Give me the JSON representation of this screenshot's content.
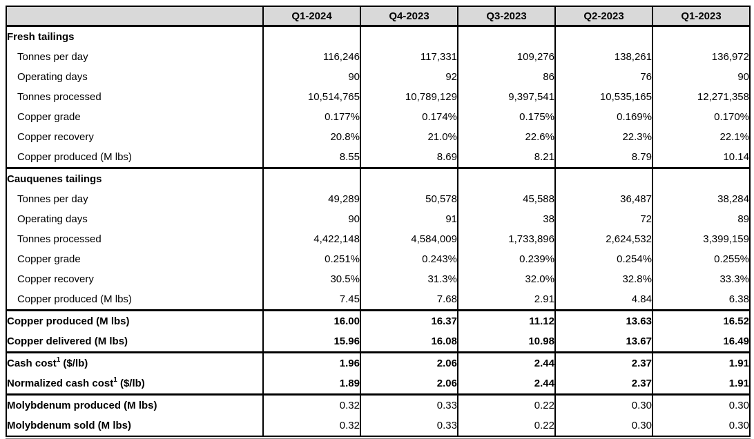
{
  "table": {
    "columns": [
      "",
      "Q1-2024",
      "Q4-2023",
      "Q3-2023",
      "Q2-2023",
      "Q1-2023"
    ],
    "rows": [
      {
        "label": "Fresh tailings",
        "type": "section",
        "group_start": false,
        "values": [
          "",
          "",
          "",
          "",
          ""
        ]
      },
      {
        "label": "Tonnes per day",
        "type": "metric",
        "group_start": false,
        "values": [
          "116,246",
          "117,331",
          "109,276",
          "138,261",
          "136,972"
        ]
      },
      {
        "label": "Operating days",
        "type": "metric",
        "group_start": false,
        "values": [
          "90",
          "92",
          "86",
          "76",
          "90"
        ]
      },
      {
        "label": "Tonnes processed",
        "type": "metric",
        "group_start": false,
        "values": [
          "10,514,765",
          "10,789,129",
          "9,397,541",
          "10,535,165",
          "12,271,358"
        ]
      },
      {
        "label": "Copper grade",
        "type": "metric",
        "group_start": false,
        "values": [
          "0.177%",
          "0.174%",
          "0.175%",
          "0.169%",
          "0.170%"
        ]
      },
      {
        "label": "Copper recovery",
        "type": "metric",
        "group_start": false,
        "values": [
          "20.8%",
          "21.0%",
          "22.6%",
          "22.3%",
          "22.1%"
        ]
      },
      {
        "label": "Copper produced (M lbs)",
        "type": "metric",
        "group_start": false,
        "values": [
          "8.55",
          "8.69",
          "8.21",
          "8.79",
          "10.14"
        ]
      },
      {
        "label": "Cauquenes tailings",
        "type": "section",
        "group_start": true,
        "values": [
          "",
          "",
          "",
          "",
          ""
        ]
      },
      {
        "label": "Tonnes per day",
        "type": "metric",
        "group_start": false,
        "values": [
          "49,289",
          "50,578",
          "45,588",
          "36,487",
          "38,284"
        ]
      },
      {
        "label": "Operating days",
        "type": "metric",
        "group_start": false,
        "values": [
          "90",
          "91",
          "38",
          "72",
          "89"
        ]
      },
      {
        "label": "Tonnes processed",
        "type": "metric",
        "group_start": false,
        "values": [
          "4,422,148",
          "4,584,009",
          "1,733,896",
          "2,624,532",
          "3,399,159"
        ]
      },
      {
        "label": "Copper grade",
        "type": "metric",
        "group_start": false,
        "values": [
          "0.251%",
          "0.243%",
          "0.239%",
          "0.254%",
          "0.255%"
        ]
      },
      {
        "label": "Copper recovery",
        "type": "metric",
        "group_start": false,
        "values": [
          "30.5%",
          "31.3%",
          "32.0%",
          "32.8%",
          "33.3%"
        ]
      },
      {
        "label": "Copper produced (M lbs)",
        "type": "metric",
        "group_start": false,
        "values": [
          "7.45",
          "7.68",
          "2.91",
          "4.84",
          "6.38"
        ]
      },
      {
        "label": "Copper produced (M lbs)",
        "type": "total",
        "group_start": true,
        "values": [
          "16.00",
          "16.37",
          "11.12",
          "13.63",
          "16.52"
        ]
      },
      {
        "label": "Copper delivered (M lbs)",
        "type": "total",
        "group_start": false,
        "values": [
          "15.96",
          "16.08",
          "10.98",
          "13.67",
          "16.49"
        ]
      },
      {
        "label": "Cash cost",
        "sup": "1",
        "label_suffix": " ($/lb)",
        "type": "total",
        "group_start": true,
        "values": [
          "1.96",
          "2.06",
          "2.44",
          "2.37",
          "1.91"
        ]
      },
      {
        "label": "Normalized cash cost",
        "sup": "1",
        "label_suffix": " ($/lb)",
        "type": "total",
        "group_start": false,
        "values": [
          "1.89",
          "2.06",
          "2.44",
          "2.37",
          "1.91"
        ]
      },
      {
        "label": "Molybdenum produced (M lbs)",
        "type": "bold-label",
        "group_start": true,
        "values": [
          "0.32",
          "0.33",
          "0.22",
          "0.30",
          "0.30"
        ]
      },
      {
        "label": "Molybdenum sold (M lbs)",
        "type": "bold-label",
        "group_start": false,
        "values": [
          "0.32",
          "0.33",
          "0.22",
          "0.30",
          "0.30"
        ]
      }
    ]
  }
}
